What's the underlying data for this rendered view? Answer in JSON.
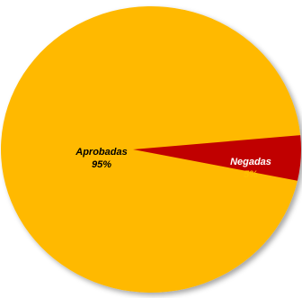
{
  "chart_data": {
    "type": "pie",
    "slices": [
      {
        "label": "Aprobadas",
        "value": 95,
        "percent_label": "95%",
        "color": "#FFB900",
        "label_color": "#000000"
      },
      {
        "label": "Negadas",
        "value": 5,
        "percent_label": "5%",
        "color": "#C00000",
        "label_color": "#FFFFFF",
        "percent_color": "#FFC000"
      }
    ],
    "title": "",
    "legend": "none",
    "start_angle_note": "3-D style pie, slices labeled inside"
  }
}
